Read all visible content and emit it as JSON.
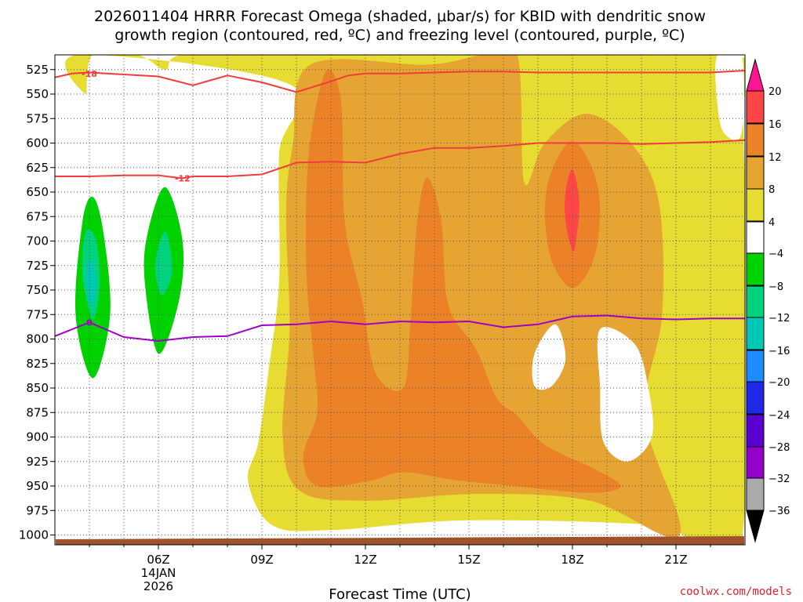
{
  "chart_data": {
    "type": "heatmap",
    "title_line1": "2026011404 HRRR Forecast Omega (shaded, μbar/s) for KBID with dendritic snow",
    "title_line2": "growth region (contoured, red, ºC) and freezing level (contoured, purple, ºC)",
    "xlabel": "Forecast Time (UTC)",
    "credit": "coolwx.com/models",
    "xlim": [
      3,
      23
    ],
    "ylim": [
      1010,
      510
    ],
    "y_ticks": [
      525,
      550,
      575,
      600,
      625,
      650,
      675,
      700,
      725,
      750,
      775,
      800,
      825,
      850,
      875,
      900,
      925,
      950,
      975,
      1000
    ],
    "x_ticks": [
      {
        "hour": 6,
        "label": "06Z",
        "sub1": "14JAN",
        "sub2": "2026"
      },
      {
        "hour": 9,
        "label": "09Z",
        "sub1": "",
        "sub2": ""
      },
      {
        "hour": 12,
        "label": "12Z",
        "sub1": "",
        "sub2": ""
      },
      {
        "hour": 15,
        "label": "15Z",
        "sub1": "",
        "sub2": ""
      },
      {
        "hour": 18,
        "label": "18Z",
        "sub1": "",
        "sub2": ""
      },
      {
        "hour": 21,
        "label": "21Z",
        "sub1": "",
        "sub2": ""
      }
    ],
    "colorbar": {
      "levels": [
        -36,
        -32,
        -28,
        -24,
        -20,
        -16,
        -12,
        -8,
        -4,
        4,
        8,
        12,
        16,
        20
      ],
      "labels": [
        "20",
        "16",
        "12",
        "8",
        "4",
        "−4",
        "−8",
        "−12",
        "−16",
        "−20",
        "−24",
        "−28",
        "−32",
        "−36"
      ],
      "colors": {
        "gray": "#aaaaaa",
        "purple": "#9400c8",
        "violet": "#5a00d0",
        "blue": "#1e28e6",
        "lightblue": "#1e8cff",
        "teal": "#00c8b4",
        "emerald": "#00d27d",
        "green": "#00d200",
        "white": "#ffffff",
        "yellow": "#e6dc32",
        "gold": "#e6a532",
        "orange": "#eb8228",
        "red": "#ff4646",
        "magenta": "#ff1493"
      }
    },
    "omega_regions": [
      {
        "level": "yellow",
        "value": "4 to 8",
        "points": [
          [
            3.7,
            510
          ],
          [
            3.9,
            550
          ],
          [
            4.1,
            510
          ],
          [
            5.4,
            510
          ],
          [
            6.2,
            525
          ],
          [
            6.7,
            510
          ],
          [
            9.8,
            510
          ],
          [
            22.5,
            510
          ],
          [
            22.7,
            560
          ],
          [
            22.9,
            510
          ],
          [
            22.9,
            1005
          ],
          [
            20.5,
            990
          ],
          [
            15,
            985
          ],
          [
            11,
            995
          ],
          [
            9.3,
            990
          ],
          [
            8.6,
            945
          ],
          [
            8.9,
            905
          ],
          [
            9.2,
            830
          ],
          [
            9.5,
            740
          ],
          [
            9.5,
            610
          ],
          [
            9.8,
            540
          ]
        ]
      },
      {
        "level": "gold",
        "value": "8 to 12",
        "points": [
          [
            10.4,
            520
          ],
          [
            13.8,
            520
          ],
          [
            15.4,
            510
          ],
          [
            16.4,
            510
          ],
          [
            16.6,
            640
          ],
          [
            17.2,
            600
          ],
          [
            18.4,
            570
          ],
          [
            19.7,
            600
          ],
          [
            20.5,
            660
          ],
          [
            20.6,
            775
          ],
          [
            20.1,
            880
          ],
          [
            21.1,
            1000
          ],
          [
            18.5,
            965
          ],
          [
            15.3,
            958
          ],
          [
            12,
            965
          ],
          [
            10.1,
            955
          ],
          [
            9.6,
            900
          ],
          [
            9.8,
            790
          ],
          [
            9.7,
            670
          ],
          [
            9.9,
            600
          ]
        ]
      },
      {
        "level": "orange",
        "value": "12 to 16",
        "points": [
          [
            10.9,
            525
          ],
          [
            11.3,
            560
          ],
          [
            11.4,
            680
          ],
          [
            11.9,
            760
          ],
          [
            12.3,
            835
          ],
          [
            13.1,
            850
          ],
          [
            13.3,
            785
          ],
          [
            13.5,
            680
          ],
          [
            13.8,
            635
          ],
          [
            14.2,
            680
          ],
          [
            14.4,
            765
          ],
          [
            15.2,
            810
          ],
          [
            15.8,
            860
          ],
          [
            16.4,
            878
          ],
          [
            17.2,
            908
          ],
          [
            18.6,
            932
          ],
          [
            19.4,
            950
          ],
          [
            18.5,
            957
          ],
          [
            16.3,
            950
          ],
          [
            14.6,
            944
          ],
          [
            13.1,
            936
          ],
          [
            12.1,
            945
          ],
          [
            10.6,
            950
          ],
          [
            10.2,
            920
          ],
          [
            10.6,
            875
          ],
          [
            10.5,
            820
          ],
          [
            10.3,
            740
          ],
          [
            10.3,
            640
          ],
          [
            10.5,
            575
          ]
        ]
      },
      {
        "level": "orange",
        "value": "12 to 16",
        "points": [
          [
            18,
            598
          ],
          [
            18.6,
            628
          ],
          [
            18.8,
            670
          ],
          [
            18.6,
            720
          ],
          [
            18,
            748
          ],
          [
            17.4,
            720
          ],
          [
            17.2,
            670
          ],
          [
            17.4,
            628
          ]
        ]
      },
      {
        "level": "red",
        "value": "16 to 20",
        "points": [
          [
            18,
            627
          ],
          [
            18.2,
            660
          ],
          [
            18.1,
            700
          ],
          [
            18,
            710
          ],
          [
            17.8,
            680
          ],
          [
            17.8,
            650
          ]
        ]
      },
      {
        "level": "white",
        "value": "-4 to 4",
        "points": [
          [
            22.2,
            510
          ],
          [
            22.9,
            510
          ],
          [
            22.9,
            590
          ],
          [
            22.4,
            590
          ],
          [
            22.2,
            560
          ]
        ]
      },
      {
        "level": "white",
        "value": "-4 to 4",
        "points": [
          [
            16.9,
            815
          ],
          [
            17.5,
            785
          ],
          [
            17.8,
            820
          ],
          [
            17.4,
            848
          ],
          [
            16.9,
            848
          ]
        ]
      },
      {
        "level": "white",
        "value": "-4 to 4",
        "points": [
          [
            18.8,
            790
          ],
          [
            19.8,
            805
          ],
          [
            20.2,
            850
          ],
          [
            20.3,
            900
          ],
          [
            19.6,
            925
          ],
          [
            18.9,
            905
          ],
          [
            18.8,
            850
          ]
        ]
      },
      {
        "level": "green",
        "value": "-8 to -4",
        "points": [
          [
            4.1,
            840
          ],
          [
            3.6,
            775
          ],
          [
            3.8,
            680
          ],
          [
            4.1,
            655
          ],
          [
            4.4,
            690
          ],
          [
            4.6,
            775
          ]
        ]
      },
      {
        "level": "emerald",
        "value": "-12 to -8",
        "points": [
          [
            4.1,
            780
          ],
          [
            3.8,
            735
          ],
          [
            3.9,
            690
          ],
          [
            4.2,
            700
          ],
          [
            4.3,
            745
          ]
        ]
      },
      {
        "level": "teal",
        "value": "-16 to -12",
        "points": [
          [
            4,
            765
          ],
          [
            3.9,
            730
          ],
          [
            4.1,
            720
          ],
          [
            4.2,
            750
          ]
        ]
      },
      {
        "level": "green",
        "value": "-8 to -4",
        "points": [
          [
            6,
            815
          ],
          [
            5.6,
            740
          ],
          [
            5.7,
            690
          ],
          [
            6.2,
            645
          ],
          [
            6.7,
            700
          ],
          [
            6.6,
            760
          ]
        ]
      },
      {
        "level": "emerald",
        "value": "-12 to -8",
        "points": [
          [
            6.1,
            755
          ],
          [
            5.9,
            725
          ],
          [
            6.2,
            690
          ],
          [
            6.4,
            730
          ]
        ]
      }
    ],
    "dgz_contours": [
      {
        "label": "-18",
        "label_at": [
          4,
          529
        ],
        "points": [
          [
            3,
            533
          ],
          [
            3.5,
            529
          ],
          [
            4,
            528
          ],
          [
            5,
            530
          ],
          [
            6,
            532
          ],
          [
            7,
            541
          ],
          [
            8,
            531
          ],
          [
            9,
            538
          ],
          [
            10,
            548
          ],
          [
            11,
            537
          ],
          [
            11.5,
            531
          ],
          [
            12,
            529
          ],
          [
            13,
            529
          ],
          [
            14,
            528
          ],
          [
            15,
            527
          ],
          [
            16,
            527
          ],
          [
            17,
            528
          ],
          [
            18,
            528
          ],
          [
            19,
            528
          ],
          [
            20,
            528
          ],
          [
            21,
            528
          ],
          [
            22,
            528
          ],
          [
            23,
            526
          ]
        ]
      },
      {
        "label": "-12",
        "label_at": [
          6.7,
          636
        ],
        "points": [
          [
            3,
            634
          ],
          [
            4,
            634
          ],
          [
            5,
            633
          ],
          [
            6,
            633
          ],
          [
            6.7,
            636
          ],
          [
            7,
            634
          ],
          [
            8,
            634
          ],
          [
            9,
            632
          ],
          [
            10,
            620
          ],
          [
            11,
            619
          ],
          [
            12,
            620
          ],
          [
            13,
            611
          ],
          [
            14,
            605
          ],
          [
            15,
            605
          ],
          [
            16,
            603
          ],
          [
            17,
            600
          ],
          [
            18,
            600
          ],
          [
            19,
            600
          ],
          [
            20,
            601
          ],
          [
            21,
            600
          ],
          [
            22,
            599
          ],
          [
            23,
            597
          ]
        ]
      }
    ],
    "freezing_contour": {
      "label": "0",
      "label_at": [
        4,
        783
      ],
      "points": [
        [
          3,
          797
        ],
        [
          4,
          783
        ],
        [
          5,
          798
        ],
        [
          6,
          802
        ],
        [
          7,
          798
        ],
        [
          8,
          797
        ],
        [
          9,
          786
        ],
        [
          10,
          785
        ],
        [
          11,
          782
        ],
        [
          12,
          785
        ],
        [
          13,
          782
        ],
        [
          14,
          783
        ],
        [
          15,
          782
        ],
        [
          16,
          788
        ],
        [
          17,
          785
        ],
        [
          18,
          777
        ],
        [
          19,
          776
        ],
        [
          20,
          779
        ],
        [
          21,
          780
        ],
        [
          22,
          779
        ],
        [
          23,
          779
        ]
      ]
    }
  }
}
